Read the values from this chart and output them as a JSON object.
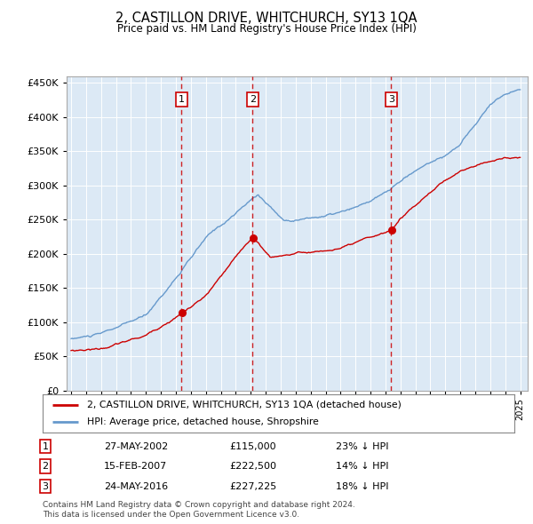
{
  "title": "2, CASTILLON DRIVE, WHITCHURCH, SY13 1QA",
  "subtitle": "Price paid vs. HM Land Registry's House Price Index (HPI)",
  "legend_line1": "2, CASTILLON DRIVE, WHITCHURCH, SY13 1QA (detached house)",
  "legend_line2": "HPI: Average price, detached house, Shropshire",
  "sale_color": "#cc0000",
  "hpi_color": "#6699cc",
  "background_color": "#dce9f5",
  "ylim": [
    0,
    460000
  ],
  "yticks": [
    0,
    50000,
    100000,
    150000,
    200000,
    250000,
    300000,
    350000,
    400000,
    450000
  ],
  "sale_dates_str": [
    "27-MAY-2002",
    "15-FEB-2007",
    "24-MAY-2016"
  ],
  "sale_prices_str": [
    "£115,000",
    "£222,500",
    "£227,225"
  ],
  "sale_hpi_str": [
    "23% ↓ HPI",
    "14% ↓ HPI",
    "18% ↓ HPI"
  ],
  "footer1": "Contains HM Land Registry data © Crown copyright and database right 2024.",
  "footer2": "This data is licensed under the Open Government Licence v3.0.",
  "vline_dates": [
    2002.38,
    2007.12,
    2016.38
  ],
  "vline_labels": [
    "1",
    "2",
    "3"
  ]
}
